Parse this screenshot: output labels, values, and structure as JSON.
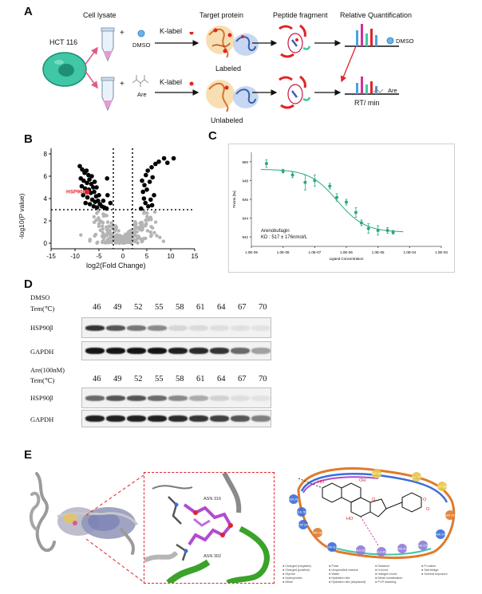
{
  "panel_labels": {
    "a": "A",
    "b": "B",
    "c": "C",
    "d": "D",
    "e": "E"
  },
  "panelA": {
    "cell_lysate": "Cell lysate",
    "target_protein": "Target protein",
    "peptide_fragment": "Peptide fragment",
    "relative_quant": "Relative Quantification",
    "cell_line": "HCT 116",
    "klabel_top": "K-label",
    "klabel_bottom": "K-label",
    "dmso": "DMSO",
    "are": "Are",
    "labeled": "Labeled",
    "unlabeled": "Unlabeled",
    "dmso_right": "DMSO",
    "are_right": "Are",
    "rt": "RT/ min",
    "plus": "+"
  },
  "panelB": {
    "highlight": "HSP90β",
    "ylabel": "-log10(P value)",
    "xlabel": "log2(Fold Change)",
    "xticks": [
      "-15",
      "-10",
      "-5",
      "0",
      "5",
      "10",
      "15"
    ],
    "yticks": [
      "0",
      "2",
      "4",
      "6",
      "8"
    ],
    "chart_data": {
      "type": "scatter",
      "xlim": [
        -15,
        15
      ],
      "ylim": [
        -0.5,
        8.5
      ],
      "x_cutoffs": [
        -2,
        2
      ],
      "y_cutoff": 3,
      "highlight_point": {
        "name": "HSP90β",
        "x": -7.5,
        "y": 4.6
      },
      "significant_points": [
        [
          -9,
          6.9
        ],
        [
          -8.5,
          6.6
        ],
        [
          -8,
          6.3
        ],
        [
          -7.6,
          6.5
        ],
        [
          -7.2,
          6.1
        ],
        [
          -8.8,
          5.8
        ],
        [
          -8.2,
          5.6
        ],
        [
          -7.5,
          5.4
        ],
        [
          -7,
          5.7
        ],
        [
          -6.6,
          5.3
        ],
        [
          -6.2,
          5.0
        ],
        [
          -8.6,
          5.1
        ],
        [
          -7.9,
          4.9
        ],
        [
          -7.1,
          4.8
        ],
        [
          -6.7,
          4.5
        ],
        [
          -6,
          4.6
        ],
        [
          -5.6,
          4.2
        ],
        [
          -8.3,
          4.3
        ],
        [
          -7.4,
          4.1
        ],
        [
          -6.4,
          3.9
        ],
        [
          -5.8,
          3.7
        ],
        [
          -5.2,
          3.8
        ],
        [
          -4.8,
          3.5
        ],
        [
          -6.9,
          3.5
        ],
        [
          -7.8,
          3.6
        ],
        [
          -4.4,
          3.3
        ],
        [
          -5.4,
          3.2
        ],
        [
          -6.1,
          3.3
        ],
        [
          -3.9,
          3.2
        ],
        [
          -3.4,
          3.1
        ],
        [
          -4.1,
          3.8
        ],
        [
          -5,
          4.3
        ],
        [
          -6.5,
          6.0
        ],
        [
          -5.9,
          5.5
        ],
        [
          -5.5,
          5.0
        ],
        [
          -3.2,
          4.3
        ],
        [
          -2.6,
          3.6
        ],
        [
          -3.3,
          5.8
        ],
        [
          4,
          5.6
        ],
        [
          4.8,
          6.1
        ],
        [
          5.2,
          6.5
        ],
        [
          6,
          6.8
        ],
        [
          6.8,
          7.1
        ],
        [
          7.5,
          7.3
        ],
        [
          8.6,
          7.6
        ],
        [
          9.3,
          7.2
        ],
        [
          10.6,
          7.6
        ],
        [
          4.5,
          5.2
        ],
        [
          5.6,
          5.5
        ],
        [
          6.2,
          5.9
        ],
        [
          5,
          4.8
        ],
        [
          4.2,
          4.6
        ],
        [
          6.5,
          4.3
        ],
        [
          4.7,
          3.6
        ],
        [
          5.3,
          3.3
        ],
        [
          3.8,
          3.1
        ],
        [
          6.1,
          3.4
        ],
        [
          5.8,
          3.9
        ],
        [
          4.4,
          4.0
        ]
      ]
    }
  },
  "panelC": {
    "ylabel": "Fnorm [‰]",
    "xlabel": "Ligand Concentration",
    "xticks": [
      "1.0E-09",
      "1.0E-08",
      "1.0E-07",
      "1.0E-06",
      "1.0E-05",
      "1.0E-04",
      "1.0E-03"
    ],
    "yticks": [
      "950",
      "948",
      "946",
      "944",
      "942"
    ],
    "annotation_name": "Arenobufagin",
    "annotation_kd": "KD : 517 ± 176nmol/L",
    "chart_data": {
      "type": "scatter",
      "x_scale": "log",
      "xlim": [
        1e-09,
        0.001
      ],
      "ylim": [
        941,
        951
      ],
      "points": [
        {
          "x": 3e-09,
          "y": 949.8,
          "err": 0.4
        },
        {
          "x": 1e-08,
          "y": 949.0,
          "err": 0.2
        },
        {
          "x": 2e-08,
          "y": 948.6,
          "err": 0.3
        },
        {
          "x": 5e-08,
          "y": 947.8,
          "err": 0.8
        },
        {
          "x": 1e-07,
          "y": 948.0,
          "err": 0.6
        },
        {
          "x": 3e-07,
          "y": 947.4,
          "err": 0.3
        },
        {
          "x": 5e-07,
          "y": 946.2,
          "err": 0.4
        },
        {
          "x": 1e-06,
          "y": 945.7,
          "err": 0.3
        },
        {
          "x": 2e-06,
          "y": 944.6,
          "err": 0.5
        },
        {
          "x": 3e-06,
          "y": 943.5,
          "err": 0.3
        },
        {
          "x": 5e-06,
          "y": 942.9,
          "err": 0.5
        },
        {
          "x": 1e-05,
          "y": 942.7,
          "err": 0.5
        },
        {
          "x": 2e-05,
          "y": 942.7,
          "err": 0.3
        },
        {
          "x": 3e-05,
          "y": 942.5,
          "err": 0.2
        }
      ],
      "fit": {
        "top": 949.2,
        "bottom": 942.5,
        "kd": 5.17e-07
      }
    }
  },
  "panelD": {
    "group1": "DMSO",
    "group2": "Are(100nM)",
    "tem_label": "Tem(℃)",
    "temps": [
      "46",
      "49",
      "52",
      "55",
      "58",
      "61",
      "64",
      "67",
      "70"
    ],
    "hsp_label": "HSP90β",
    "gapdh_label": "GAPDH",
    "dmso_hsp_intensity": [
      0.85,
      0.7,
      0.55,
      0.45,
      0.1,
      0.08,
      0.06,
      0.05,
      0.04
    ],
    "dmso_gapdh_intensity": [
      1,
      1,
      1,
      1,
      0.95,
      0.9,
      0.85,
      0.6,
      0.35
    ],
    "are_hsp_intensity": [
      0.6,
      0.7,
      0.7,
      0.6,
      0.45,
      0.3,
      0.12,
      0.06,
      0.04
    ],
    "are_gapdh_intensity": [
      0.95,
      0.95,
      0.95,
      0.95,
      0.9,
      0.85,
      0.8,
      0.7,
      0.5
    ]
  },
  "panelE": {
    "residue1": "ASN 316",
    "residue2": "ASN 302",
    "residues_right": [
      "ASN 292",
      "GLN 266",
      "TRP 290",
      "ASP 264",
      "PRO 263",
      "GLY 267",
      "LEU 264",
      "SER 290",
      "ASN 312",
      "ALA 315",
      "ALA 309",
      "ASN 315",
      "HIS 376",
      "ASN 378"
    ],
    "mol_labels": [
      "HO",
      "OH",
      "O",
      "HO",
      "O",
      "O"
    ],
    "legend_col1": [
      "Charged (negative)",
      "Charged (positive)",
      "Glycine",
      "Hydrophobic",
      "Metal"
    ],
    "legend_col2": [
      "Polar",
      "Unspecified residue",
      "Water",
      "Hydration site",
      "Hydration site (displaced)"
    ],
    "legend_col3": [
      "Distance",
      "H-bond",
      "Halogen bond",
      "Metal coordination",
      "Pi-Pi stacking"
    ],
    "legend_col4": [
      "Pi-cation",
      "Salt bridge",
      "Solvent exposure"
    ]
  }
}
